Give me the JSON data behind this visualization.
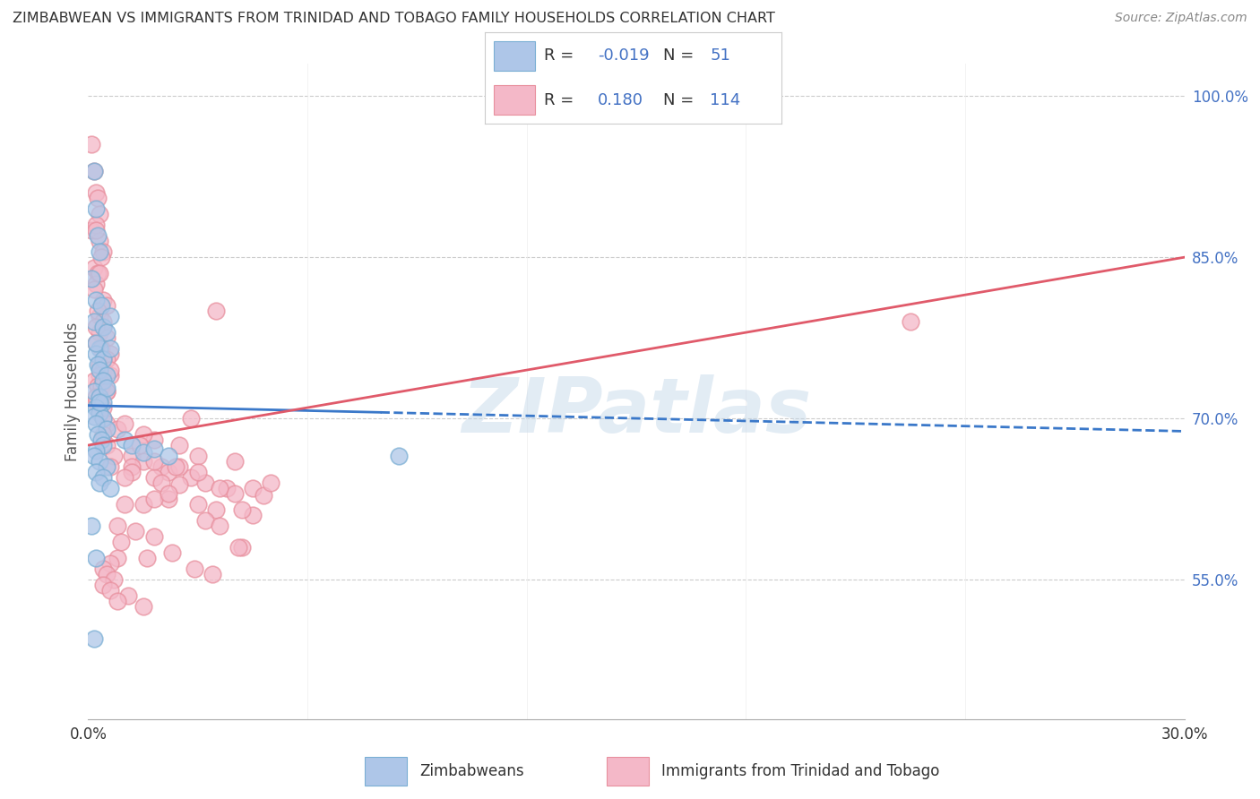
{
  "title": "ZIMBABWEAN VS IMMIGRANTS FROM TRINIDAD AND TOBAGO FAMILY HOUSEHOLDS CORRELATION CHART",
  "source": "Source: ZipAtlas.com",
  "ylabel": "Family Households",
  "xmin": 0.0,
  "xmax": 30.0,
  "ymin": 42.0,
  "ymax": 103.0,
  "y_ticks": [
    55.0,
    70.0,
    85.0,
    100.0
  ],
  "y_tick_labels": [
    "55.0%",
    "70.0%",
    "85.0%",
    "100.0%"
  ],
  "blue_fill": "#aec6e8",
  "pink_fill": "#f4b8c8",
  "blue_edge": "#7bafd4",
  "pink_edge": "#e8909e",
  "blue_line_color": "#3a78c9",
  "pink_line_color": "#e05a6a",
  "blue_trend_x0": 0.0,
  "blue_trend_y0": 71.2,
  "blue_trend_x1": 30.0,
  "blue_trend_y1": 68.8,
  "blue_solid_end_x": 8.0,
  "pink_trend_x0": 0.0,
  "pink_trend_y0": 67.5,
  "pink_trend_x1": 30.0,
  "pink_trend_y1": 85.0,
  "legend_color": "#4472c4",
  "zimbabwe_x": [
    0.15,
    0.2,
    0.25,
    0.3,
    0.1,
    0.2,
    0.35,
    0.15,
    0.4,
    0.5,
    0.3,
    0.2,
    0.6,
    0.4,
    0.25,
    0.3,
    0.5,
    0.4,
    0.2,
    0.15,
    0.3,
    0.4,
    0.5,
    0.6,
    0.2,
    0.3,
    0.15,
    0.4,
    0.2,
    0.3,
    0.5,
    0.25,
    0.35,
    0.4,
    0.2,
    0.15,
    0.3,
    0.5,
    0.2,
    0.4,
    0.3,
    0.6,
    1.0,
    1.2,
    1.5,
    1.8,
    2.2,
    0.1,
    0.2,
    8.5,
    0.15
  ],
  "zimbabwe_y": [
    93.0,
    89.5,
    87.0,
    85.5,
    83.0,
    81.0,
    80.5,
    79.0,
    78.5,
    78.0,
    76.5,
    76.0,
    79.5,
    75.5,
    75.0,
    74.5,
    74.0,
    73.5,
    77.0,
    72.5,
    72.0,
    71.5,
    72.8,
    76.5,
    71.0,
    70.5,
    70.2,
    70.0,
    69.5,
    71.5,
    69.0,
    68.5,
    68.0,
    67.5,
    67.0,
    66.5,
    66.0,
    65.5,
    65.0,
    64.5,
    64.0,
    63.5,
    68.0,
    67.5,
    66.8,
    67.2,
    66.5,
    60.0,
    57.0,
    66.5,
    49.5
  ],
  "trinidad_x": [
    0.1,
    0.15,
    0.2,
    0.25,
    0.3,
    0.1,
    0.2,
    0.3,
    0.4,
    0.15,
    0.25,
    0.35,
    0.2,
    0.3,
    0.4,
    0.5,
    0.2,
    0.3,
    0.15,
    0.25,
    0.4,
    0.3,
    0.5,
    0.2,
    0.35,
    0.4,
    0.6,
    0.5,
    0.3,
    0.4,
    0.2,
    0.3,
    0.15,
    0.25,
    0.5,
    0.4,
    0.3,
    0.6,
    0.2,
    0.35,
    0.4,
    0.5,
    0.3,
    0.2,
    0.4,
    0.6,
    0.5,
    0.8,
    1.0,
    1.2,
    1.5,
    1.8,
    2.0,
    2.2,
    2.5,
    2.8,
    3.0,
    3.2,
    3.5,
    3.8,
    4.0,
    1.2,
    1.5,
    1.8,
    2.2,
    2.5,
    3.0,
    1.5,
    2.0,
    2.5,
    3.5,
    4.0,
    4.5,
    1.8,
    2.2,
    2.8,
    3.2,
    0.8,
    1.0,
    4.2,
    4.5,
    4.8,
    5.0,
    0.5,
    0.7,
    1.2,
    1.8,
    2.4,
    3.0,
    3.6,
    4.2,
    0.4,
    0.6,
    1.4,
    1.0,
    22.5,
    0.8,
    3.6,
    1.3,
    0.6,
    0.4,
    0.9,
    1.8,
    2.3,
    4.1,
    0.5,
    0.7,
    1.6,
    0.4,
    2.9,
    0.6,
    3.4,
    1.1,
    0.8,
    1.5
  ],
  "trinidad_y": [
    95.5,
    93.0,
    91.0,
    90.5,
    89.0,
    87.5,
    88.0,
    86.5,
    85.5,
    84.0,
    83.5,
    85.0,
    82.5,
    83.5,
    81.0,
    80.5,
    87.5,
    79.5,
    82.0,
    80.0,
    78.5,
    78.0,
    77.5,
    77.0,
    76.5,
    79.0,
    76.0,
    75.5,
    75.0,
    74.5,
    78.5,
    74.0,
    73.5,
    73.0,
    72.5,
    75.5,
    72.0,
    74.0,
    71.5,
    73.0,
    71.0,
    72.5,
    70.5,
    72.0,
    70.0,
    74.5,
    69.5,
    69.0,
    69.5,
    66.5,
    66.0,
    68.0,
    65.5,
    65.0,
    67.5,
    64.5,
    66.5,
    64.0,
    80.0,
    63.5,
    63.0,
    65.5,
    68.5,
    64.5,
    62.5,
    63.8,
    65.0,
    62.0,
    64.0,
    65.5,
    61.5,
    66.0,
    61.0,
    62.5,
    63.0,
    70.0,
    60.5,
    60.0,
    62.0,
    61.5,
    63.5,
    62.8,
    64.0,
    67.5,
    66.5,
    65.0,
    66.0,
    65.5,
    62.0,
    63.5,
    58.0,
    68.5,
    65.5,
    67.5,
    64.5,
    79.0,
    57.0,
    60.0,
    59.5,
    56.5,
    56.0,
    58.5,
    59.0,
    57.5,
    58.0,
    55.5,
    55.0,
    57.0,
    54.5,
    56.0,
    54.0,
    55.5,
    53.5,
    53.0,
    52.5
  ]
}
